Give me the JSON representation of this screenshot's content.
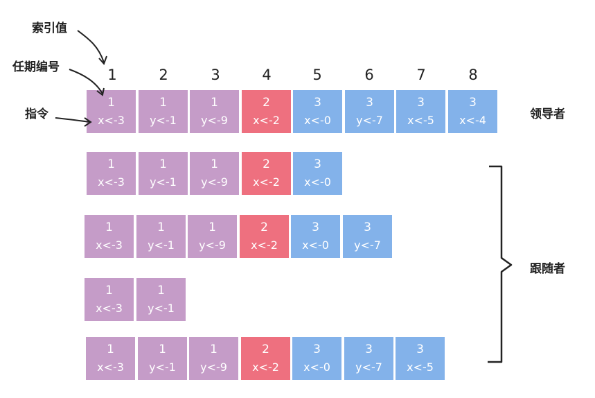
{
  "labels": {
    "index_value": "索引值",
    "term_number": "任期编号",
    "command": "指令",
    "leader": "领导者",
    "follower": "跟随者"
  },
  "indices": [
    "1",
    "2",
    "3",
    "4",
    "5",
    "6",
    "7",
    "8"
  ],
  "logs": {
    "leader": [
      {
        "term": "1",
        "cmd": "x<-3"
      },
      {
        "term": "1",
        "cmd": "y<-1"
      },
      {
        "term": "1",
        "cmd": "y<-9"
      },
      {
        "term": "2",
        "cmd": "x<-2"
      },
      {
        "term": "3",
        "cmd": "x<-0"
      },
      {
        "term": "3",
        "cmd": "y<-7"
      },
      {
        "term": "3",
        "cmd": "x<-5"
      },
      {
        "term": "3",
        "cmd": "x<-4"
      }
    ],
    "followers": [
      [
        {
          "term": "1",
          "cmd": "x<-3"
        },
        {
          "term": "1",
          "cmd": "y<-1"
        },
        {
          "term": "1",
          "cmd": "y<-9"
        },
        {
          "term": "2",
          "cmd": "x<-2"
        },
        {
          "term": "3",
          "cmd": "x<-0"
        }
      ],
      [
        {
          "term": "1",
          "cmd": "x<-3"
        },
        {
          "term": "1",
          "cmd": "y<-1"
        },
        {
          "term": "1",
          "cmd": "y<-9"
        },
        {
          "term": "2",
          "cmd": "x<-2"
        },
        {
          "term": "3",
          "cmd": "x<-0"
        },
        {
          "term": "3",
          "cmd": "y<-7"
        }
      ],
      [
        {
          "term": "1",
          "cmd": "x<-3"
        },
        {
          "term": "1",
          "cmd": "y<-1"
        }
      ],
      [
        {
          "term": "1",
          "cmd": "x<-3"
        },
        {
          "term": "1",
          "cmd": "y<-1"
        },
        {
          "term": "1",
          "cmd": "y<-9"
        },
        {
          "term": "2",
          "cmd": "x<-2"
        },
        {
          "term": "3",
          "cmd": "x<-0"
        },
        {
          "term": "3",
          "cmd": "y<-7"
        },
        {
          "term": "3",
          "cmd": "x<-5"
        }
      ]
    ]
  },
  "colors": {
    "term_1": "#c59cc8",
    "term_2": "#ee707f",
    "term_3": "#83b2ea"
  }
}
